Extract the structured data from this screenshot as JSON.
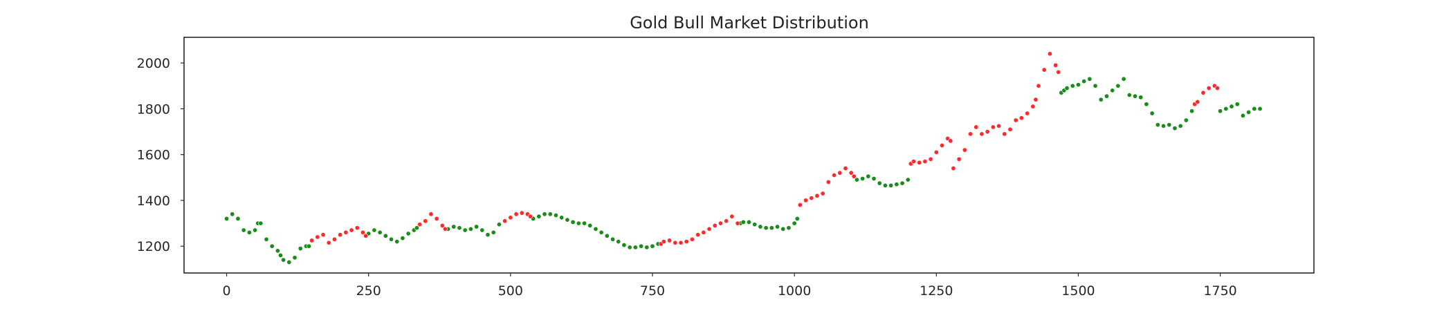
{
  "chart_data": {
    "type": "scatter",
    "title": "Gold Bull Market Distribution",
    "xlabel": "",
    "ylabel": "",
    "xlim": [
      -75,
      1915
    ],
    "ylim": [
      1083,
      2112
    ],
    "x_ticks": [
      0,
      250,
      500,
      750,
      1000,
      1250,
      1500,
      1750
    ],
    "y_ticks": [
      1200,
      1400,
      1600,
      1800,
      2000
    ],
    "grid": false,
    "legend": "none",
    "colors": {
      "bull": "#ff2a2a",
      "bear": "#1a8c1a",
      "marker_edge": "#ffffff"
    },
    "series": [
      {
        "regime": "bear",
        "color": "#1a8c1a",
        "x": [
          0,
          10,
          20,
          30,
          40,
          50,
          55,
          60,
          70,
          80,
          90,
          95,
          100,
          110,
          120,
          130,
          140,
          145,
          250,
          260,
          270,
          280,
          290,
          300,
          310,
          320,
          330,
          335,
          390,
          400,
          410,
          420,
          430,
          440,
          450,
          460,
          470,
          480,
          540,
          550,
          560,
          570,
          580,
          590,
          600,
          610,
          620,
          630,
          640,
          650,
          660,
          670,
          680,
          690,
          700,
          710,
          720,
          730,
          740,
          750,
          760,
          905,
          910,
          920,
          930,
          940,
          950,
          960,
          970,
          980,
          990,
          1000,
          1005,
          1110,
          1120,
          1130,
          1140,
          1150,
          1160,
          1170,
          1180,
          1190,
          1200,
          1470,
          1475,
          1480,
          1490,
          1500,
          1510,
          1520,
          1530,
          1540,
          1550,
          1560,
          1570,
          1580,
          1590,
          1600,
          1610,
          1620,
          1630,
          1640,
          1650,
          1660,
          1670,
          1680,
          1690,
          1700,
          1750,
          1760,
          1770,
          1780,
          1790,
          1800,
          1810,
          1820
        ],
        "y": [
          1320,
          1340,
          1320,
          1270,
          1260,
          1270,
          1300,
          1300,
          1230,
          1200,
          1180,
          1160,
          1140,
          1130,
          1150,
          1190,
          1200,
          1200,
          1255,
          1270,
          1260,
          1245,
          1230,
          1220,
          1235,
          1255,
          1270,
          1280,
          1275,
          1285,
          1280,
          1270,
          1275,
          1285,
          1270,
          1250,
          1260,
          1295,
          1320,
          1330,
          1340,
          1340,
          1335,
          1325,
          1315,
          1305,
          1300,
          1300,
          1290,
          1275,
          1260,
          1245,
          1230,
          1220,
          1205,
          1195,
          1195,
          1200,
          1195,
          1200,
          1210,
          1300,
          1305,
          1305,
          1295,
          1285,
          1280,
          1280,
          1285,
          1275,
          1280,
          1300,
          1320,
          1490,
          1495,
          1505,
          1495,
          1475,
          1465,
          1465,
          1470,
          1475,
          1490,
          1870,
          1880,
          1890,
          1900,
          1905,
          1920,
          1930,
          1900,
          1840,
          1855,
          1880,
          1900,
          1930,
          1860,
          1855,
          1850,
          1820,
          1780,
          1730,
          1725,
          1730,
          1715,
          1725,
          1750,
          1790,
          1790,
          1800,
          1810,
          1820,
          1770,
          1785,
          1800,
          1800
        ]
      },
      {
        "regime": "bull",
        "color": "#ff2a2a",
        "x": [
          150,
          160,
          170,
          180,
          190,
          200,
          210,
          220,
          230,
          240,
          245,
          340,
          350,
          360,
          370,
          380,
          385,
          490,
          500,
          510,
          520,
          530,
          535,
          765,
          770,
          780,
          790,
          800,
          810,
          820,
          830,
          840,
          850,
          860,
          870,
          880,
          890,
          900,
          1010,
          1020,
          1030,
          1040,
          1050,
          1060,
          1070,
          1080,
          1090,
          1100,
          1105,
          1205,
          1210,
          1220,
          1230,
          1240,
          1250,
          1260,
          1270,
          1275,
          1280,
          1290,
          1300,
          1310,
          1320,
          1330,
          1340,
          1350,
          1360,
          1370,
          1380,
          1390,
          1400,
          1410,
          1420,
          1425,
          1430,
          1440,
          1450,
          1460,
          1465,
          1705,
          1710,
          1720,
          1730,
          1740,
          1745
        ],
        "y": [
          1225,
          1240,
          1250,
          1215,
          1230,
          1250,
          1260,
          1270,
          1280,
          1260,
          1245,
          1295,
          1310,
          1340,
          1320,
          1290,
          1275,
          1310,
          1325,
          1340,
          1345,
          1340,
          1330,
          1210,
          1220,
          1225,
          1215,
          1215,
          1220,
          1230,
          1250,
          1260,
          1275,
          1290,
          1300,
          1310,
          1330,
          1300,
          1380,
          1400,
          1410,
          1420,
          1430,
          1480,
          1510,
          1520,
          1540,
          1520,
          1505,
          1560,
          1570,
          1565,
          1570,
          1580,
          1610,
          1640,
          1670,
          1660,
          1540,
          1580,
          1620,
          1690,
          1720,
          1690,
          1700,
          1720,
          1725,
          1690,
          1710,
          1750,
          1760,
          1780,
          1810,
          1840,
          1900,
          1970,
          2040,
          1990,
          1960,
          1820,
          1830,
          1870,
          1890,
          1900,
          1890
        ]
      }
    ]
  }
}
